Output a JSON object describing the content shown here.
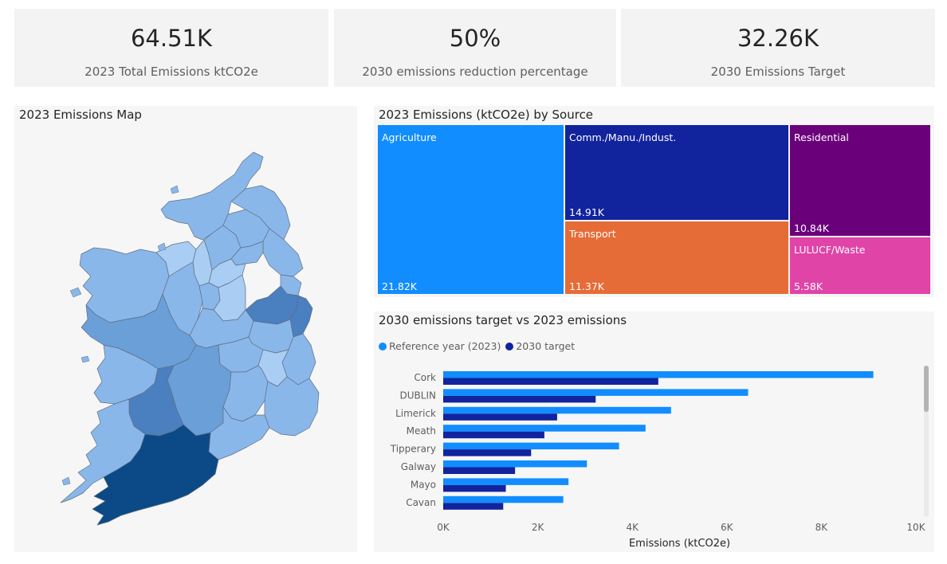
{
  "kpis": [
    {
      "value": "64.51K",
      "label": "2023 Total Emissions ktCO2e"
    },
    {
      "value": "50%",
      "label": "2030 emissions reduction percentage"
    },
    {
      "value": "32.26K",
      "label": "2030 Emissions Target"
    }
  ],
  "map": {
    "title": "2023 Emissions Map",
    "colors": {
      "low": "#a9cdf3",
      "mid": "#8ab7ea",
      "midhigh": "#6a9fd8",
      "high": "#4a7fc0",
      "highest": "#0b4a86"
    }
  },
  "treemap": {
    "title": "2023 Emissions (ktCO2e) by Source",
    "cells": [
      {
        "label": "Agriculture",
        "value": "21.82K",
        "color": "#118dff"
      },
      {
        "label": "Comm./Manu./Indust.",
        "value": "14.91K",
        "color": "#12239e"
      },
      {
        "label": "Transport",
        "value": "11.37K",
        "color": "#e66c37"
      },
      {
        "label": "Residential",
        "value": "10.84K",
        "color": "#6b007b"
      },
      {
        "label": "LULUCF/Waste",
        "value": "5.58K",
        "color": "#e044a7"
      }
    ]
  },
  "bar_chart": {
    "title": "2030 emissions target vs 2023 emissions",
    "legend": [
      {
        "name": "Reference year (2023)",
        "color": "#118dff"
      },
      {
        "name": "2030 target",
        "color": "#12239e"
      }
    ]
  },
  "chart_data": [
    {
      "type": "bar",
      "title": "2030 emissions target vs 2023 emissions",
      "orientation": "horizontal",
      "categories": [
        "Cork",
        "DUBLIN",
        "Limerick",
        "Meath",
        "Tipperary",
        "Galway",
        "Mayo",
        "Cavan"
      ],
      "series": [
        {
          "name": "Reference year (2023)",
          "color": "#118dff",
          "values": [
            9100,
            6450,
            4820,
            4280,
            3720,
            3040,
            2650,
            2540
          ]
        },
        {
          "name": "2030 target",
          "color": "#12239e",
          "values": [
            4550,
            3225,
            2410,
            2140,
            1860,
            1520,
            1325,
            1270
          ]
        }
      ],
      "xlabel": "Emissions (ktCO2e)",
      "xlim": [
        0,
        10000
      ],
      "xticks": [
        0,
        2000,
        4000,
        6000,
        8000,
        10000
      ],
      "xtick_labels": [
        "0K",
        "2K",
        "4K",
        "6K",
        "8K",
        "10K"
      ],
      "legend_position": "top-left",
      "grid": false
    },
    {
      "type": "treemap",
      "title": "2023 Emissions (ktCO2e) by Source",
      "categories": [
        "Agriculture",
        "Comm./Manu./Indust.",
        "Transport",
        "Residential",
        "LULUCF/Waste"
      ],
      "values": [
        21820,
        14910,
        11370,
        10840,
        5580
      ]
    }
  ]
}
